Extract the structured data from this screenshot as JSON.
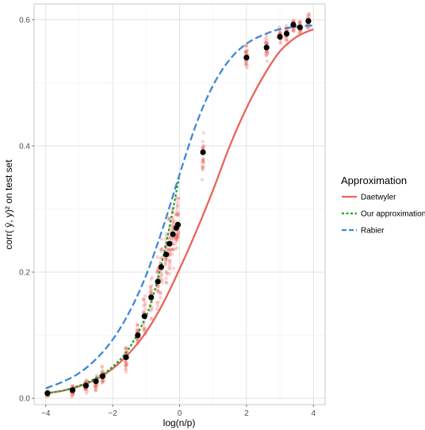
{
  "chart_data": {
    "type": "line",
    "xlabel": "log(n/p)",
    "ylabel": "corr( ŷ, y)² on test set",
    "xlim": [
      -4.35,
      4.35
    ],
    "ylim": [
      -0.01,
      0.625
    ],
    "x_ticks": [
      -4,
      -2,
      0,
      2,
      4
    ],
    "y_ticks": [
      0.0,
      0.2,
      0.4,
      0.6
    ],
    "x_tick_labels": [
      "−4",
      "−2",
      "0",
      "2",
      "4"
    ],
    "y_tick_labels": [
      "0.0",
      "0.2",
      "0.4",
      "0.6"
    ],
    "grid": true,
    "legend": {
      "title": "Approximation",
      "position": "right",
      "entries": [
        {
          "label": "Daetwyler",
          "color": "#E8645A",
          "dash": "solid"
        },
        {
          "label": "Our approximation",
          "color": "#22A22A",
          "dash": "dotted"
        },
        {
          "label": "Rabier",
          "color": "#3E87D6",
          "dash": "dashed"
        }
      ]
    },
    "colors": {
      "daetwyler": "#E8645A",
      "our": "#22A22A",
      "rabier": "#3E87D6",
      "points": "#E8645A",
      "means": "#000000"
    },
    "series": [
      {
        "name": "Daetwyler",
        "x": [
          -4,
          -3.5,
          -3,
          -2.5,
          -2,
          -1.5,
          -1,
          -0.5,
          0,
          0.5,
          1,
          1.5,
          2,
          2.5,
          3,
          3.5,
          4
        ],
        "y": [
          0.008,
          0.012,
          0.019,
          0.03,
          0.047,
          0.072,
          0.105,
          0.15,
          0.205,
          0.265,
          0.33,
          0.4,
          0.46,
          0.51,
          0.55,
          0.573,
          0.585
        ]
      },
      {
        "name": "Our approximation",
        "x": [
          -4,
          -3.5,
          -3,
          -2.5,
          -2,
          -1.5,
          -1,
          -0.75,
          -0.5,
          -0.25,
          0
        ],
        "y": [
          0.008,
          0.012,
          0.02,
          0.032,
          0.05,
          0.08,
          0.13,
          0.17,
          0.222,
          0.285,
          0.355
        ]
      },
      {
        "name": "Rabier",
        "x": [
          -4,
          -3.5,
          -3,
          -2.5,
          -2,
          -1.5,
          -1,
          -0.5,
          0,
          0.5,
          1,
          1.5,
          2,
          2.5,
          3,
          3.5,
          4
        ],
        "y": [
          0.016,
          0.026,
          0.04,
          0.062,
          0.093,
          0.137,
          0.195,
          0.27,
          0.355,
          0.435,
          0.496,
          0.537,
          0.562,
          0.576,
          0.585,
          0.589,
          0.591
        ]
      }
    ],
    "means": {
      "x": [
        -3.95,
        -3.2,
        -2.8,
        -2.5,
        -2.3,
        -1.6,
        -1.25,
        -1.05,
        -0.85,
        -0.65,
        -0.55,
        -0.4,
        -0.3,
        -0.2,
        -0.1,
        -0.05,
        0.7,
        2.0,
        2.6,
        3.0,
        3.2,
        3.4,
        3.6,
        3.85
      ],
      "y": [
        0.008,
        0.013,
        0.02,
        0.027,
        0.035,
        0.065,
        0.1,
        0.13,
        0.16,
        0.185,
        0.208,
        0.228,
        0.245,
        0.26,
        0.27,
        0.275,
        0.39,
        0.54,
        0.556,
        0.573,
        0.578,
        0.592,
        0.588,
        0.598
      ]
    },
    "spread": [
      0.006,
      0.008,
      0.01,
      0.012,
      0.012,
      0.018,
      0.022,
      0.028,
      0.03,
      0.035,
      0.035,
      0.04,
      0.04,
      0.045,
      0.045,
      0.04,
      0.03,
      0.02,
      0.015,
      0.015,
      0.012,
      0.01,
      0.01,
      0.01
    ]
  }
}
